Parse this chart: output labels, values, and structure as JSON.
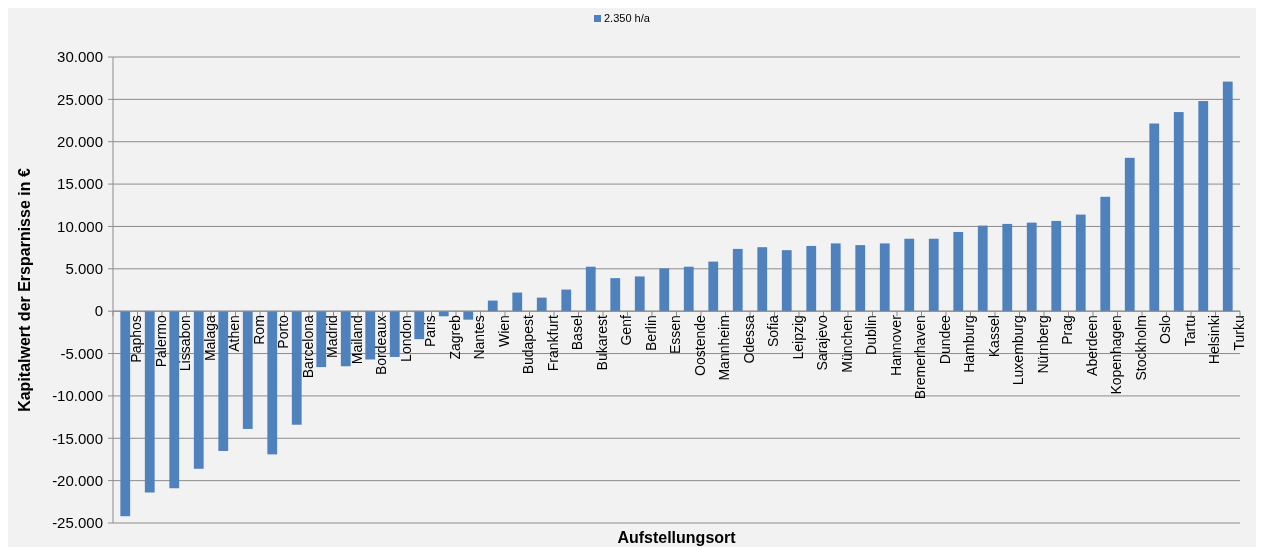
{
  "chart_data": {
    "type": "bar",
    "xlabel": "Aufstellungsort",
    "ylabel": "Kapitalwert der Ersparnisse in €",
    "categories": [
      "Paphos",
      "Palermo",
      "Lissabon",
      "Malaga",
      "Athen",
      "Rom",
      "Porto",
      "Barcelona",
      "Madrid",
      "Mailand",
      "Bordeaux",
      "London",
      "Paris",
      "Zagreb",
      "Nantes",
      "Wien",
      "Budapest",
      "Frankfurt",
      "Basel",
      "Bukarest",
      "Genf",
      "Berlin",
      "Essen",
      "Oostende",
      "Mannheim",
      "Odessa",
      "Sofia",
      "Leipzig",
      "Sarajevo",
      "München",
      "Dublin",
      "Hannover",
      "Bremerhaven",
      "Dundee",
      "Hamburg",
      "Kassel",
      "Luxemburg",
      "Nürnberg",
      "Prag",
      "Aberdeen",
      "Kopenhagen",
      "Stockholm",
      "Oslo",
      "Tartu",
      "Helsinki",
      "Turku"
    ],
    "series": [
      {
        "name": "2.350 h/a",
        "color": "#4f81bd",
        "values": [
          -24200,
          -21400,
          -20900,
          -18600,
          -16500,
          -13900,
          -16900,
          -13400,
          -6600,
          -6500,
          -5700,
          -5400,
          -3300,
          -600,
          -1000,
          1250,
          2200,
          1600,
          2550,
          5250,
          3900,
          4100,
          5050,
          5250,
          5850,
          7350,
          7550,
          7200,
          7700,
          8000,
          7800,
          8000,
          8550,
          8550,
          9350,
          10100,
          10300,
          10450,
          10650,
          11400,
          13500,
          18100,
          22150,
          23500,
          24800,
          27100
        ]
      }
    ],
    "ylim": [
      -25000,
      30000
    ],
    "yticks": [
      {
        "value": -25000,
        "label": "-25.000"
      },
      {
        "value": -20000,
        "label": "-20.000"
      },
      {
        "value": -15000,
        "label": "-15.000"
      },
      {
        "value": -10000,
        "label": "-10.000"
      },
      {
        "value": -5000,
        "label": "-5.000"
      },
      {
        "value": 0,
        "label": "0"
      },
      {
        "value": 5000,
        "label": "5.000"
      },
      {
        "value": 10000,
        "label": "10.000"
      },
      {
        "value": 15000,
        "label": "15.000"
      },
      {
        "value": 20000,
        "label": "20.000"
      },
      {
        "value": 25000,
        "label": "25.000"
      },
      {
        "value": 30000,
        "label": "30.000"
      }
    ],
    "grid": "y",
    "legend": "top"
  }
}
